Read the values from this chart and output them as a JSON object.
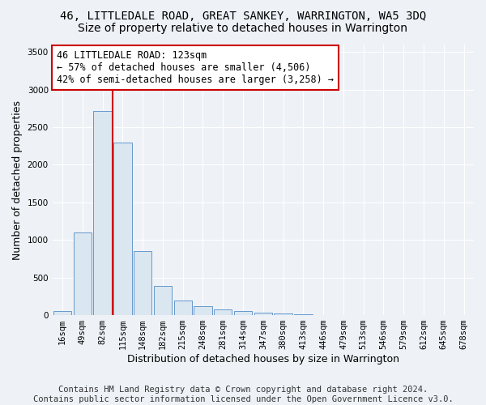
{
  "title": "46, LITTLEDALE ROAD, GREAT SANKEY, WARRINGTON, WA5 3DQ",
  "subtitle": "Size of property relative to detached houses in Warrington",
  "xlabel": "Distribution of detached houses by size in Warrington",
  "ylabel": "Number of detached properties",
  "categories": [
    "16sqm",
    "49sqm",
    "82sqm",
    "115sqm",
    "148sqm",
    "182sqm",
    "215sqm",
    "248sqm",
    "281sqm",
    "314sqm",
    "347sqm",
    "380sqm",
    "413sqm",
    "446sqm",
    "479sqm",
    "513sqm",
    "546sqm",
    "579sqm",
    "612sqm",
    "645sqm",
    "678sqm"
  ],
  "values": [
    55,
    1100,
    2720,
    2300,
    850,
    390,
    190,
    115,
    75,
    55,
    35,
    20,
    10,
    5,
    5,
    3,
    3,
    2,
    2,
    2,
    2
  ],
  "bar_color": "#dae6f0",
  "bar_edge_color": "#6699cc",
  "vline_color": "#cc0000",
  "vline_pos": 2.5,
  "annotation_text": "46 LITTLEDALE ROAD: 123sqm\n← 57% of detached houses are smaller (4,506)\n42% of semi-detached houses are larger (3,258) →",
  "annotation_box_color": "#ffffff",
  "annotation_box_edge_color": "#cc0000",
  "ylim": [
    0,
    3600
  ],
  "yticks": [
    0,
    500,
    1000,
    1500,
    2000,
    2500,
    3000,
    3500
  ],
  "footer_line1": "Contains HM Land Registry data © Crown copyright and database right 2024.",
  "footer_line2": "Contains public sector information licensed under the Open Government Licence v3.0.",
  "background_color": "#eef2f7",
  "grid_color": "#ffffff",
  "title_fontsize": 10,
  "subtitle_fontsize": 10,
  "axis_label_fontsize": 9,
  "tick_fontsize": 7.5,
  "annotation_fontsize": 8.5,
  "footer_fontsize": 7.5
}
